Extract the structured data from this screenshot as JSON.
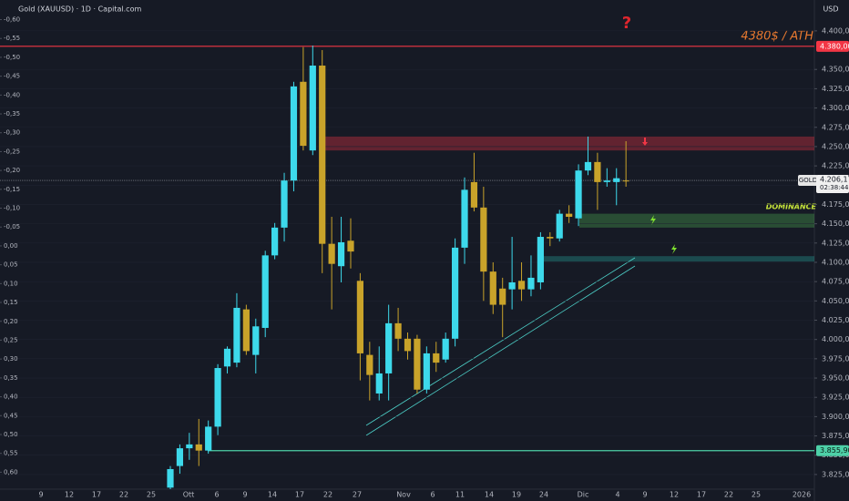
{
  "chart_data": {
    "type": "candlestick",
    "title": "Gold (XAUUSD) · 1D · Capital.com",
    "currency": "USD",
    "up_color": "#3dd9eb",
    "down_color": "#c9a32a",
    "open": [
      3808,
      3836,
      3859,
      3864,
      3856,
      3887,
      3965,
      3970,
      4039,
      3980,
      4015,
      4109,
      4145,
      4206,
      4334,
      4245,
      4355,
      4124,
      4095,
      4128,
      4076,
      3980,
      3930,
      3956,
      4021,
      4001,
      4001,
      3935,
      3982,
      3974,
      4001,
      4119,
      4204,
      4171,
      4088,
      4066,
      4065,
      4076,
      4065,
      4074,
      4133,
      4131,
      4163,
      4157,
      4219,
      4230,
      4204,
      4204,
      4206
    ],
    "high": [
      3836,
      3864,
      3879,
      3897,
      3895,
      3968,
      3991,
      4060,
      4045,
      4027,
      4115,
      4151,
      4216,
      4334,
      4379,
      4381,
      4375,
      4159,
      4159,
      4157,
      4086,
      3997,
      3991,
      4045,
      4041,
      4009,
      4006,
      3991,
      3997,
      4009,
      4131,
      4210,
      4242,
      4198,
      4100,
      4080,
      4133,
      4100,
      4109,
      4139,
      4139,
      4168,
      4174,
      4227,
      4263,
      4242,
      4222,
      4222,
      4257
    ],
    "low": [
      3802,
      3826,
      3844,
      3836,
      3852,
      3876,
      3956,
      3964,
      3980,
      3956,
      4003,
      4104,
      4127,
      4192,
      4245,
      4239,
      4086,
      4039,
      4074,
      4092,
      3947,
      3921,
      3921,
      3921,
      3985,
      3974,
      3930,
      3930,
      3958,
      3970,
      3991,
      4098,
      4166,
      4050,
      4033,
      4003,
      4039,
      4050,
      4056,
      4065,
      4121,
      4127,
      4151,
      4147,
      4213,
      4168,
      4198,
      4174,
      4198
    ],
    "close": [
      3832,
      3859,
      3864,
      3856,
      3887,
      3963,
      3988,
      4041,
      3985,
      4017,
      4109,
      4145,
      4206,
      4328,
      4251,
      4355,
      4124,
      4098,
      4126,
      4114,
      3982,
      3954,
      3956,
      4021,
      4001,
      3985,
      3935,
      3982,
      3970,
      4001,
      4119,
      4194,
      4171,
      4088,
      4045,
      4045,
      4074,
      4065,
      4080,
      4133,
      4131,
      4163,
      4159,
      4219,
      4230,
      4204,
      4206,
      4209,
      4205
    ],
    "xticks": [
      "9",
      "12",
      "17",
      "22",
      "25",
      "Ott",
      "6",
      "9",
      "14",
      "17",
      "22",
      "27",
      "Nov",
      "6",
      "11",
      "14",
      "19",
      "24",
      "Dic",
      "4",
      "9",
      "12",
      "17",
      "22",
      "25",
      "2026"
    ],
    "ylim": [
      3806,
      4440
    ],
    "yticks": [
      {
        "value": 3825,
        "label": "3.825,00"
      },
      {
        "value": 3850,
        "label": "3.850,00"
      },
      {
        "value": 3875,
        "label": "3.875,00"
      },
      {
        "value": 3900,
        "label": "3.900,00"
      },
      {
        "value": 3925,
        "label": "3.925,00"
      },
      {
        "value": 3950,
        "label": "3.950,00"
      },
      {
        "value": 3975,
        "label": "3.975,00"
      },
      {
        "value": 4000,
        "label": "4.000,00"
      },
      {
        "value": 4025,
        "label": "4.025,00"
      },
      {
        "value": 4050,
        "label": "4.050,00"
      },
      {
        "value": 4075,
        "label": "4.075,00"
      },
      {
        "value": 4100,
        "label": "4.100,00"
      },
      {
        "value": 4125,
        "label": "4.125,00"
      },
      {
        "value": 4150,
        "label": "4.150,00"
      },
      {
        "value": 4175,
        "label": "4.175,00"
      },
      {
        "value": 4200,
        "label": "4.200,00"
      },
      {
        "value": 4225,
        "label": "4.225,00"
      },
      {
        "value": 4250,
        "label": "4.250,00"
      },
      {
        "value": 4275,
        "label": "4.275,00"
      },
      {
        "value": 4300,
        "label": "4.300,00"
      },
      {
        "value": 4325,
        "label": "4.325,00"
      },
      {
        "value": 4350,
        "label": "4.350,00"
      },
      {
        "value": 4400,
        "label": "4.400,00"
      }
    ],
    "y2lim": [
      0.645,
      -0.652
    ],
    "y2ticks": [
      {
        "value": -0.6,
        "label": "-0,60"
      },
      {
        "value": -0.55,
        "label": "-0,55"
      },
      {
        "value": -0.5,
        "label": "-0,50"
      },
      {
        "value": -0.45,
        "label": "-0,45"
      },
      {
        "value": -0.4,
        "label": "-0,40"
      },
      {
        "value": -0.35,
        "label": "-0,35"
      },
      {
        "value": -0.3,
        "label": "-0,30"
      },
      {
        "value": -0.25,
        "label": "-0,25"
      },
      {
        "value": -0.2,
        "label": "-0,20"
      },
      {
        "value": -0.15,
        "label": "-0,15"
      },
      {
        "value": -0.1,
        "label": "-0,10"
      },
      {
        "value": -0.05,
        "label": "-0,05"
      },
      {
        "value": 0,
        "label": "0,00"
      },
      {
        "value": 0.05,
        "label": "0,05"
      },
      {
        "value": 0.1,
        "label": "0,10"
      },
      {
        "value": 0.15,
        "label": "0,15"
      },
      {
        "value": 0.2,
        "label": "0,20"
      },
      {
        "value": 0.25,
        "label": "0,25"
      },
      {
        "value": 0.3,
        "label": "0,30"
      },
      {
        "value": 0.35,
        "label": "0,35"
      },
      {
        "value": 0.4,
        "label": "0,40"
      },
      {
        "value": 0.45,
        "label": "0,45"
      },
      {
        "value": 0.5,
        "label": "0,50"
      },
      {
        "value": 0.55,
        "label": "0,55"
      },
      {
        "value": 0.6,
        "label": "0,60"
      }
    ],
    "levels": [
      {
        "value": 4380,
        "label": "4.380,00",
        "color": "#f23645"
      },
      {
        "value": 3855.9,
        "label": "3.855,90",
        "color": "#4dd0a7"
      }
    ],
    "last_price": {
      "name": "GOLD",
      "value": 4206.17,
      "label": "4.206,17",
      "countdown": "02:38:44"
    },
    "zones": [
      {
        "from": 4245,
        "to": 4263,
        "color": "#f23645"
      },
      {
        "from": 4145,
        "to": 4163,
        "color": "#4caf50"
      },
      {
        "from": 4101,
        "to": 4108,
        "color": "#26a69a"
      }
    ],
    "annotations": {
      "ath": "4380$ / ATH",
      "dominance": "DOMINANCE",
      "question": "?"
    }
  }
}
